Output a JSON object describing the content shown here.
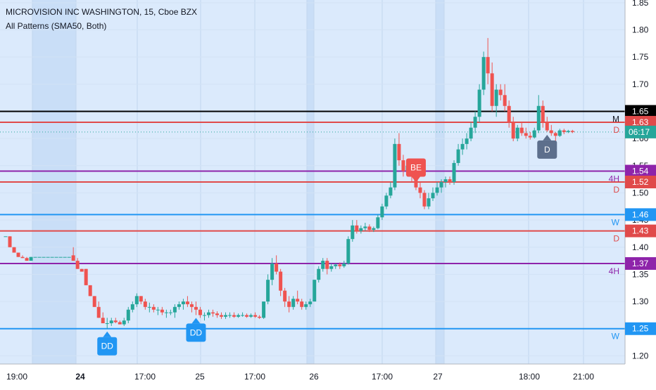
{
  "header": {
    "title": "MICROVISION INC WASHINGTON, 15, Cboe BZX",
    "indicator": "All Patterns (SMA50, Both)"
  },
  "chart_data": {
    "type": "candlestick",
    "symbol": "MICROVISION INC WASHINGTON",
    "interval": "15",
    "exchange": "Cboe BZX",
    "y_range": [
      1.185,
      1.855
    ],
    "y_ticks": [
      "1.85",
      "1.80",
      "1.75",
      "1.70",
      "1.65",
      "1.60",
      "1.55",
      "1.50",
      "1.45",
      "1.40",
      "1.35",
      "1.30",
      "1.25",
      "1.20"
    ],
    "x_tick_labels": [
      {
        "label": "19:00",
        "bold": false
      },
      {
        "label": "24",
        "bold": true
      },
      {
        "label": "17:00",
        "bold": false
      },
      {
        "label": "25",
        "bold": false
      },
      {
        "label": "17:00",
        "bold": false
      },
      {
        "label": "26",
        "bold": false
      },
      {
        "label": "17:00",
        "bold": false
      },
      {
        "label": "27",
        "bold": false
      },
      {
        "label": "18:00",
        "bold": false
      },
      {
        "label": "21:00",
        "bold": false
      }
    ],
    "levels": [
      {
        "value": 1.65,
        "color": "#000000",
        "label": "1.65",
        "tag": "M"
      },
      {
        "value": 1.63,
        "color": "#e04a4a",
        "label": "1.63",
        "tag": "D"
      },
      {
        "value": 1.54,
        "color": "#8e24aa",
        "label": "1.54",
        "tag": "4H"
      },
      {
        "value": 1.52,
        "color": "#e04a4a",
        "label": "1.52",
        "tag": "D"
      },
      {
        "value": 1.46,
        "color": "#2196f3",
        "label": "1.46",
        "tag": "W"
      },
      {
        "value": 1.43,
        "color": "#e04a4a",
        "label": "1.43",
        "tag": "D"
      },
      {
        "value": 1.37,
        "color": "#8e24aa",
        "label": "1.37",
        "tag": "4H"
      },
      {
        "value": 1.25,
        "color": "#2196f3",
        "label": "1.25",
        "tag": "W"
      }
    ],
    "current_price": {
      "value": 1.612,
      "label": "06:17",
      "color": "#26a69a"
    },
    "patterns": [
      {
        "label": "DD",
        "candle": 24,
        "direction": "up",
        "color": "#2196f3"
      },
      {
        "label": "DD",
        "candle": 45,
        "direction": "up",
        "color": "#2196f3"
      },
      {
        "label": "BE",
        "candle": 97,
        "direction": "down",
        "color": "#ef5350"
      },
      {
        "label": "D",
        "candle": 128,
        "direction": "up",
        "color": "#5d6f8c"
      }
    ],
    "candles": [
      [
        1.42,
        1.42,
        1.42,
        1.42
      ],
      [
        1.42,
        1.42,
        1.4,
        1.4
      ],
      [
        1.4,
        1.4,
        1.39,
        1.39
      ],
      [
        1.39,
        1.39,
        1.382,
        1.382
      ],
      [
        1.382,
        1.385,
        1.38,
        1.38
      ],
      [
        1.38,
        1.382,
        1.375,
        1.375
      ],
      [
        1.375,
        1.382,
        1.38,
        1.382
      ],
      [
        1.382,
        1.382,
        1.382,
        1.382
      ],
      [
        1.382,
        1.382,
        1.382,
        1.382
      ],
      [
        1.382,
        1.382,
        1.382,
        1.382
      ],
      [
        1.382,
        1.382,
        1.382,
        1.382
      ],
      [
        1.382,
        1.382,
        1.382,
        1.382
      ],
      [
        1.382,
        1.382,
        1.382,
        1.382
      ],
      [
        1.382,
        1.382,
        1.382,
        1.382
      ],
      [
        1.382,
        1.382,
        1.382,
        1.382
      ],
      [
        1.382,
        1.382,
        1.382,
        1.382
      ],
      [
        1.385,
        1.4,
        1.375,
        1.375
      ],
      [
        1.375,
        1.38,
        1.36,
        1.36
      ],
      [
        1.36,
        1.36,
        1.355,
        1.355
      ],
      [
        1.36,
        1.36,
        1.33,
        1.33
      ],
      [
        1.33,
        1.33,
        1.31,
        1.31
      ],
      [
        1.31,
        1.31,
        1.29,
        1.29
      ],
      [
        1.29,
        1.3,
        1.27,
        1.27
      ],
      [
        1.27,
        1.28,
        1.26,
        1.26
      ],
      [
        1.26,
        1.27,
        1.25,
        1.26
      ],
      [
        1.26,
        1.27,
        1.255,
        1.265
      ],
      [
        1.265,
        1.27,
        1.26,
        1.262
      ],
      [
        1.262,
        1.265,
        1.258,
        1.258
      ],
      [
        1.258,
        1.27,
        1.255,
        1.265
      ],
      [
        1.265,
        1.29,
        1.26,
        1.285
      ],
      [
        1.285,
        1.3,
        1.28,
        1.295
      ],
      [
        1.295,
        1.315,
        1.29,
        1.31
      ],
      [
        1.31,
        1.31,
        1.295,
        1.3
      ],
      [
        1.3,
        1.305,
        1.285,
        1.29
      ],
      [
        1.29,
        1.298,
        1.28,
        1.29
      ],
      [
        1.29,
        1.295,
        1.28,
        1.285
      ],
      [
        1.285,
        1.29,
        1.275,
        1.285
      ],
      [
        1.285,
        1.29,
        1.275,
        1.28
      ],
      [
        1.28,
        1.285,
        1.27,
        1.28
      ],
      [
        1.28,
        1.285,
        1.275,
        1.28
      ],
      [
        1.28,
        1.295,
        1.27,
        1.29
      ],
      [
        1.29,
        1.3,
        1.285,
        1.295
      ],
      [
        1.295,
        1.305,
        1.285,
        1.3
      ],
      [
        1.3,
        1.31,
        1.29,
        1.295
      ],
      [
        1.295,
        1.3,
        1.28,
        1.29
      ],
      [
        1.29,
        1.3,
        1.275,
        1.285
      ],
      [
        1.285,
        1.29,
        1.27,
        1.275
      ],
      [
        1.275,
        1.28,
        1.265,
        1.275
      ],
      [
        1.275,
        1.285,
        1.27,
        1.28
      ],
      [
        1.28,
        1.285,
        1.272,
        1.278
      ],
      [
        1.278,
        1.282,
        1.27,
        1.275
      ],
      [
        1.275,
        1.28,
        1.268,
        1.272
      ],
      [
        1.272,
        1.28,
        1.268,
        1.275
      ],
      [
        1.275,
        1.28,
        1.27,
        1.275
      ],
      [
        1.275,
        1.28,
        1.27,
        1.272
      ],
      [
        1.272,
        1.278,
        1.27,
        1.275
      ],
      [
        1.275,
        1.28,
        1.272,
        1.275
      ],
      [
        1.275,
        1.278,
        1.27,
        1.272
      ],
      [
        1.272,
        1.278,
        1.27,
        1.275
      ],
      [
        1.275,
        1.28,
        1.27,
        1.272
      ],
      [
        1.272,
        1.275,
        1.268,
        1.27
      ],
      [
        1.27,
        1.3,
        1.268,
        1.3
      ],
      [
        1.3,
        1.35,
        1.295,
        1.34
      ],
      [
        1.34,
        1.38,
        1.33,
        1.37
      ],
      [
        1.37,
        1.385,
        1.35,
        1.355
      ],
      [
        1.355,
        1.36,
        1.31,
        1.32
      ],
      [
        1.32,
        1.325,
        1.29,
        1.3
      ],
      [
        1.3,
        1.31,
        1.28,
        1.29
      ],
      [
        1.29,
        1.31,
        1.285,
        1.305
      ],
      [
        1.305,
        1.32,
        1.295,
        1.3
      ],
      [
        1.3,
        1.305,
        1.285,
        1.29
      ],
      [
        1.29,
        1.3,
        1.285,
        1.295
      ],
      [
        1.295,
        1.305,
        1.29,
        1.3
      ],
      [
        1.3,
        1.34,
        1.3,
        1.34
      ],
      [
        1.34,
        1.365,
        1.335,
        1.36
      ],
      [
        1.36,
        1.38,
        1.355,
        1.375
      ],
      [
        1.375,
        1.38,
        1.35,
        1.36
      ],
      [
        1.36,
        1.37,
        1.355,
        1.365
      ],
      [
        1.365,
        1.37,
        1.36,
        1.368
      ],
      [
        1.368,
        1.372,
        1.36,
        1.365
      ],
      [
        1.365,
        1.375,
        1.362,
        1.37
      ],
      [
        1.37,
        1.42,
        1.368,
        1.415
      ],
      [
        1.415,
        1.45,
        1.41,
        1.44
      ],
      [
        1.44,
        1.45,
        1.425,
        1.43
      ],
      [
        1.43,
        1.44,
        1.425,
        1.435
      ],
      [
        1.435,
        1.445,
        1.43,
        1.438
      ],
      [
        1.438,
        1.442,
        1.428,
        1.432
      ],
      [
        1.432,
        1.438,
        1.428,
        1.435
      ],
      [
        1.435,
        1.46,
        1.433,
        1.455
      ],
      [
        1.455,
        1.48,
        1.45,
        1.475
      ],
      [
        1.475,
        1.5,
        1.47,
        1.495
      ],
      [
        1.495,
        1.52,
        1.49,
        1.51
      ],
      [
        1.51,
        1.6,
        1.505,
        1.59
      ],
      [
        1.59,
        1.61,
        1.55,
        1.56
      ],
      [
        1.56,
        1.57,
        1.53,
        1.54
      ],
      [
        1.54,
        1.56,
        1.53,
        1.55
      ],
      [
        1.55,
        1.56,
        1.52,
        1.53
      ],
      [
        1.53,
        1.54,
        1.505,
        1.51
      ],
      [
        1.51,
        1.52,
        1.49,
        1.5
      ],
      [
        1.5,
        1.505,
        1.47,
        1.475
      ],
      [
        1.475,
        1.5,
        1.47,
        1.49
      ],
      [
        1.49,
        1.51,
        1.485,
        1.5
      ],
      [
        1.5,
        1.52,
        1.495,
        1.51
      ],
      [
        1.51,
        1.525,
        1.5,
        1.52
      ],
      [
        1.52,
        1.53,
        1.51,
        1.525
      ],
      [
        1.525,
        1.53,
        1.515,
        1.52
      ],
      [
        1.52,
        1.56,
        1.515,
        1.555
      ],
      [
        1.555,
        1.59,
        1.55,
        1.58
      ],
      [
        1.58,
        1.6,
        1.57,
        1.59
      ],
      [
        1.59,
        1.61,
        1.58,
        1.6
      ],
      [
        1.6,
        1.63,
        1.595,
        1.62
      ],
      [
        1.62,
        1.65,
        1.61,
        1.64
      ],
      [
        1.64,
        1.7,
        1.63,
        1.69
      ],
      [
        1.69,
        1.76,
        1.68,
        1.75
      ],
      [
        1.75,
        1.785,
        1.7,
        1.72
      ],
      [
        1.72,
        1.74,
        1.65,
        1.66
      ],
      [
        1.66,
        1.7,
        1.64,
        1.69
      ],
      [
        1.69,
        1.7,
        1.67,
        1.68
      ],
      [
        1.68,
        1.7,
        1.65,
        1.66
      ],
      [
        1.66,
        1.67,
        1.62,
        1.63
      ],
      [
        1.63,
        1.64,
        1.595,
        1.6
      ],
      [
        1.6,
        1.625,
        1.595,
        1.62
      ],
      [
        1.62,
        1.63,
        1.605,
        1.61
      ],
      [
        1.61,
        1.62,
        1.6,
        1.605
      ],
      [
        1.605,
        1.612,
        1.598,
        1.602
      ],
      [
        1.602,
        1.62,
        1.6,
        1.615
      ],
      [
        1.615,
        1.68,
        1.61,
        1.66
      ],
      [
        1.66,
        1.67,
        1.62,
        1.63
      ],
      [
        1.63,
        1.64,
        1.612,
        1.615
      ],
      [
        1.615,
        1.625,
        1.605,
        1.61
      ],
      [
        1.61,
        1.612,
        1.595,
        1.605
      ],
      [
        1.605,
        1.618,
        1.603,
        1.615
      ],
      [
        1.615,
        1.618,
        1.608,
        1.612
      ],
      [
        1.612,
        1.616,
        1.61,
        1.614
      ],
      [
        1.614,
        1.616,
        1.61,
        1.612
      ]
    ]
  }
}
